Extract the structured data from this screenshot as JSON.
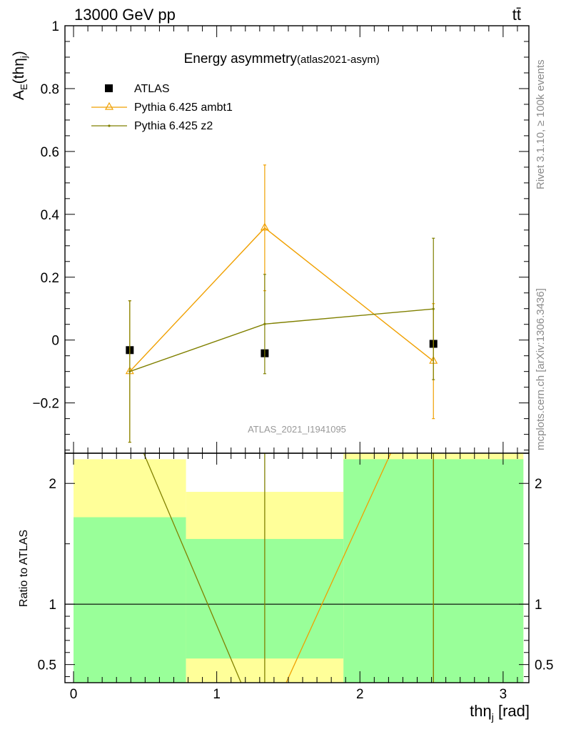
{
  "header": {
    "energy_label": "13000 GeV pp",
    "process_label": "tt̄"
  },
  "side_labels": {
    "rivet": "Rivet 3.1.10, ≥ 100k events",
    "source": "mcplots.cern.ch [arXiv:1306.3436]"
  },
  "chart_data": [
    {
      "type": "line",
      "title": "Energy asymmetry",
      "subtitle": "(atlas2021-asym)",
      "ylabel": "A",
      "ylabel_sub": "E",
      "ylabel_arg": "(thη",
      "ylabel_arg_sub": "j",
      "ylabel_close": ")",
      "watermark": "ATLAS_2021_I1941095",
      "xlim": [
        -0.06,
        3.18
      ],
      "ylim": [
        -0.36,
        1.0
      ],
      "yticks": [
        -0.2,
        0,
        0.2,
        0.4,
        0.6,
        0.8,
        1
      ],
      "ytick_labels": [
        "−0.2",
        "0",
        "0.2",
        "0.4",
        "0.6",
        "0.8",
        "1"
      ],
      "legend_position": "top-left",
      "series": [
        {
          "name": "ATLAS",
          "color": "#000000",
          "marker": "square",
          "x": [
            0.3927,
            1.3352,
            2.5133
          ],
          "y": [
            -0.032,
            -0.042,
            -0.012
          ],
          "yerr": [
            0.003,
            0.003,
            0.003
          ]
        },
        {
          "name": "Pythia 6.425 ambt1",
          "color": "#f0a000",
          "marker": "triangle",
          "x": [
            0.3927,
            1.3352,
            2.5133
          ],
          "y": [
            -0.1,
            0.357,
            -0.067
          ],
          "yerr": [
            0.225,
            0.2,
            0.183
          ]
        },
        {
          "name": "Pythia 6.425 z2",
          "color": "#808000",
          "marker": "dot",
          "x": [
            0.3927,
            1.3352,
            2.5133
          ],
          "y": [
            -0.1,
            0.051,
            0.099
          ],
          "yerr": [
            0.225,
            0.158,
            0.225
          ]
        }
      ]
    },
    {
      "type": "line",
      "ylabel": "Ratio to ATLAS",
      "xlabel": "thη",
      "xlabel_sub": "j",
      "xlabel_unit": " [rad]",
      "xlim": [
        -0.06,
        3.18
      ],
      "ylim": [
        0.35,
        2.25
      ],
      "xticks": [
        0,
        1,
        2,
        3
      ],
      "xtick_labels": [
        "0",
        "1",
        "2",
        "3"
      ],
      "yticks": [
        0.5,
        1,
        2
      ],
      "ytick_labels": [
        "0.5",
        "1",
        "2"
      ],
      "reference_line": 1,
      "bands": [
        {
          "x0": 0,
          "x1": 0.7854,
          "yellow": [
            0.35,
            2.2
          ],
          "green": [
            0.35,
            1.72
          ]
        },
        {
          "x0": 0.7854,
          "x1": 1.885,
          "yellow": [
            0.35,
            1.93
          ],
          "green": [
            0.55,
            1.54
          ]
        },
        {
          "x0": 1.885,
          "x1": 3.1416,
          "yellow": [
            0.35,
            2.25
          ],
          "green": [
            0.35,
            2.2
          ]
        }
      ],
      "band_colors": {
        "yellow": "#ffff99",
        "green": "#99ff99"
      },
      "series": [
        {
          "name": "Pythia 6.425 ambt1",
          "color": "#f0a000",
          "lines": [
            [
              [
                1.485,
                0.35
              ],
              [
                2.215,
                2.25
              ]
            ]
          ],
          "vlines": [
            2.5133
          ]
        },
        {
          "name": "Pythia 6.425 z2",
          "color": "#808000",
          "lines": [
            [
              [
                0.49,
                2.25
              ],
              [
                1.17,
                0.35
              ]
            ]
          ],
          "vlines": [
            1.3352,
            2.5133
          ]
        }
      ]
    }
  ]
}
